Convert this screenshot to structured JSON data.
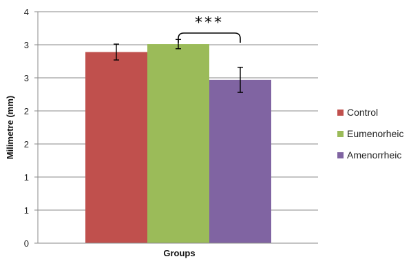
{
  "chart_data": {
    "type": "bar",
    "xlabel": "Groups",
    "ylabel": "Milimetre (mm)",
    "ylim": [
      0,
      3.5
    ],
    "grid": true,
    "legend_position": "right",
    "y_tick_labels": [
      "0",
      "1",
      "1",
      "2",
      "2",
      "3",
      "3",
      "4"
    ],
    "y_tick_values": [
      0,
      0.5,
      1,
      1.5,
      2,
      2.5,
      3,
      3.5
    ],
    "series": [
      {
        "name": "Control",
        "value": 2.89,
        "error": 0.12,
        "color": "#c0504d"
      },
      {
        "name": "Eumenorheic",
        "value": 3.01,
        "error": 0.07,
        "color": "#9bbb59"
      },
      {
        "name": "Amenorrheic",
        "value": 2.47,
        "error": 0.19,
        "color": "#8064a2"
      }
    ],
    "annotation": {
      "text": "***",
      "from_series": "Eumenorheic",
      "to_series": "Amenorrheic"
    }
  }
}
